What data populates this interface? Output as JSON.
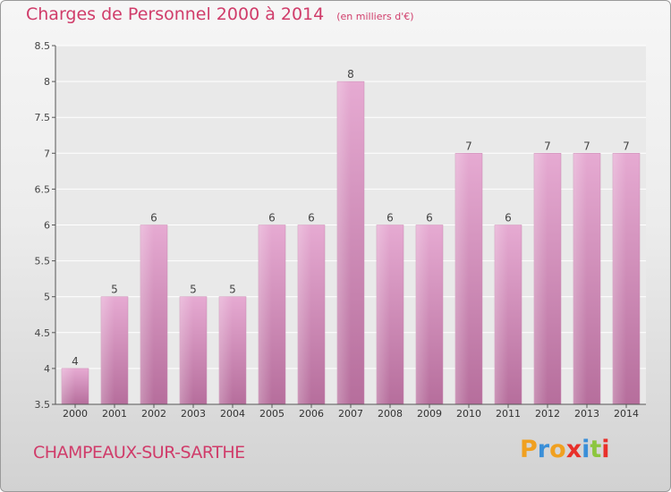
{
  "header": {
    "title": "Charges de Personnel 2000 à 2014",
    "subtitle": "(en milliers d'€)"
  },
  "footer": {
    "commune": "CHAMPEAUX-SUR-SARTHE",
    "logo_text": "Proxiti",
    "logo_colors": [
      "#f0a020",
      "#3a8fd8",
      "#f0a020",
      "#e8302a",
      "#3a8fd8",
      "#8cc63e",
      "#e8302a"
    ]
  },
  "chart_data": {
    "type": "bar",
    "title": "Charges de Personnel 2000 à 2014",
    "subtitle": "(en milliers d'€)",
    "xlabel": "",
    "ylabel": "",
    "categories": [
      "2000",
      "2001",
      "2002",
      "2003",
      "2004",
      "2005",
      "2006",
      "2007",
      "2008",
      "2009",
      "2010",
      "2011",
      "2012",
      "2013",
      "2014"
    ],
    "values": [
      4,
      5,
      6,
      5,
      5,
      6,
      6,
      8,
      6,
      6,
      7,
      6,
      7,
      7,
      7
    ],
    "value_labels": [
      "4",
      "5",
      "6",
      "5",
      "5",
      "6",
      "6",
      "8",
      "6",
      "6",
      "7",
      "6",
      "7",
      "7",
      "7"
    ],
    "ylim": [
      3.5,
      8.5
    ],
    "yticks": [
      3.5,
      4,
      4.5,
      5,
      5.5,
      6,
      6.5,
      7,
      7.5,
      8,
      8.5
    ],
    "ytick_labels": [
      "3.5",
      "4",
      "4.5",
      "5",
      "5.5",
      "6",
      "6.5",
      "7",
      "7.5",
      "8",
      "8.5"
    ],
    "grid": "horizontal",
    "bar_color": "#dc96c0"
  }
}
